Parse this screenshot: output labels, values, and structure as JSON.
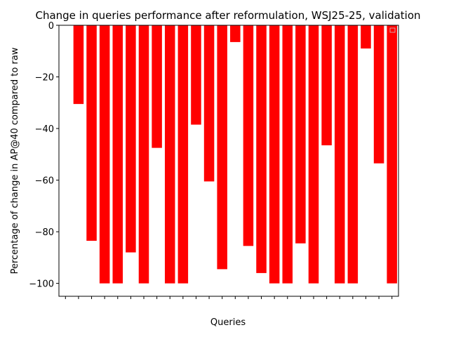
{
  "chart_data": {
    "type": "bar",
    "title": "Change in queries performance after reformulation, WSJ25-25, validation",
    "xlabel": "Queries",
    "ylabel": "Percentage of change in AP@40 compared to raw",
    "ylim": [
      -105,
      0
    ],
    "yticks": [
      0,
      -20,
      -40,
      -60,
      -80,
      -100
    ],
    "ytick_labels": [
      "0",
      "−20",
      "−40",
      "−60",
      "−80",
      "−100"
    ],
    "xlim": [
      -0.5,
      25.5
    ],
    "x_tick_labels_visible": false,
    "grid": false,
    "legend": {
      "placement": "top-right",
      "entries": []
    },
    "bar_color": "#ff0000",
    "values": [
      -30.5,
      -83.5,
      -100,
      -100,
      -88,
      -100,
      -47.5,
      -100,
      -100,
      -38.5,
      -60.5,
      -94.5,
      -6.5,
      -85.5,
      -96,
      -100,
      -100,
      -84.5,
      -100,
      -46.5,
      -100,
      -100,
      -9,
      -53.5,
      -100
    ]
  }
}
